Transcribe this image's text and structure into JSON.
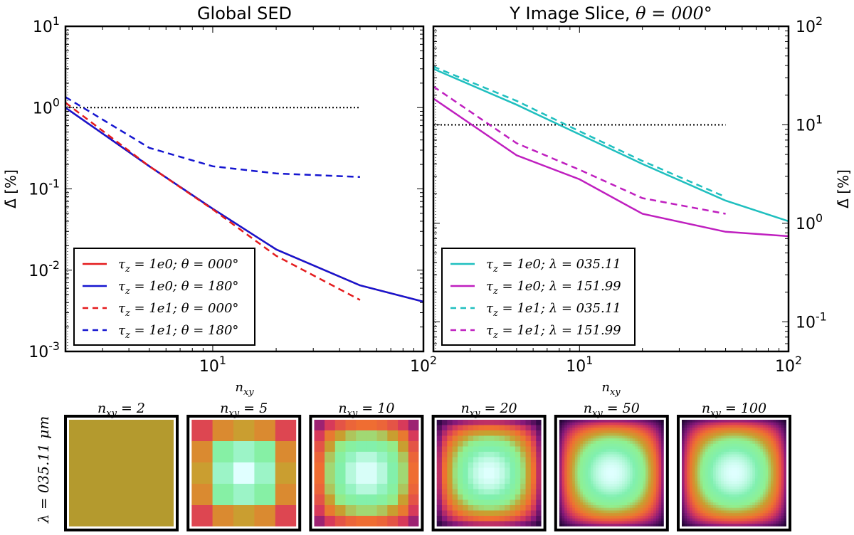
{
  "chart_data": [
    {
      "type": "line",
      "title": "Global SED",
      "xlabel": "n_xy",
      "ylabel": "Δ̄ [%]",
      "xscale": "log",
      "yscale": "log",
      "xlim": [
        2,
        100
      ],
      "ylim": [
        0.001,
        10
      ],
      "yaxis_side": "left",
      "legend_position": "lower-left",
      "xticks": [
        {
          "v": 10,
          "base": "10",
          "exp": "1"
        },
        {
          "v": 100,
          "base": "10",
          "exp": "2"
        }
      ],
      "yticks": [
        {
          "v": 0.001,
          "base": "10",
          "exp": "-3"
        },
        {
          "v": 0.01,
          "base": "10",
          "exp": "-2"
        },
        {
          "v": 0.1,
          "base": "10",
          "exp": "-1"
        },
        {
          "v": 1,
          "base": "10",
          "exp": "0"
        },
        {
          "v": 10,
          "base": "10",
          "exp": "1"
        }
      ],
      "reference_line": {
        "y": 1.0,
        "x": [
          2,
          50
        ],
        "color": "#000000",
        "style": "dotted"
      },
      "series": [
        {
          "name": "τz = 1e0; θ = 000°",
          "color": "#e41a1c",
          "style": "solid",
          "x": [
            2,
            5,
            10,
            20,
            50,
            100
          ],
          "y": [
            1.0,
            0.19,
            0.057,
            0.018,
            0.0065,
            0.0041
          ]
        },
        {
          "name": "τz = 1e0; θ = 180°",
          "color": "#1515d0",
          "style": "solid",
          "x": [
            2,
            5,
            10,
            20,
            50,
            100
          ],
          "y": [
            1.0,
            0.19,
            0.057,
            0.018,
            0.0065,
            0.0041
          ]
        },
        {
          "name": "τz = 1e1; θ = 000°",
          "color": "#e41a1c",
          "style": "dashed",
          "x": [
            2,
            5,
            10,
            20,
            50
          ],
          "y": [
            1.15,
            0.19,
            0.056,
            0.015,
            0.0043
          ]
        },
        {
          "name": "τz = 1e1; θ = 180°",
          "color": "#1515d0",
          "style": "dashed",
          "x": [
            2,
            5,
            10,
            20,
            50
          ],
          "y": [
            1.35,
            0.32,
            0.19,
            0.155,
            0.14
          ]
        }
      ],
      "legend_labels": [
        {
          "tau": "1e0",
          "var": "θ",
          "val": "000°"
        },
        {
          "tau": "1e0",
          "var": "θ",
          "val": "180°"
        },
        {
          "tau": "1e1",
          "var": "θ",
          "val": "000°"
        },
        {
          "tau": "1e1",
          "var": "θ",
          "val": "180°"
        }
      ]
    },
    {
      "type": "line",
      "title": "Y Image Slice, θ = 000°",
      "xlabel": "n_xy",
      "ylabel": "Δ̄ [%]",
      "xscale": "log",
      "yscale": "log",
      "xlim": [
        2,
        100
      ],
      "ylim": [
        0.05,
        100
      ],
      "yaxis_side": "right",
      "legend_position": "lower-left",
      "xticks": [
        {
          "v": 10,
          "base": "10",
          "exp": "1"
        },
        {
          "v": 100,
          "base": "10",
          "exp": "2"
        }
      ],
      "yticks": [
        {
          "v": 0.1,
          "base": "10",
          "exp": "-1"
        },
        {
          "v": 1,
          "base": "10",
          "exp": "0"
        },
        {
          "v": 10,
          "base": "10",
          "exp": "1"
        },
        {
          "v": 100,
          "base": "10",
          "exp": "2"
        }
      ],
      "reference_line": {
        "y": 10.0,
        "x": [
          2,
          50
        ],
        "color": "#000000",
        "style": "dotted"
      },
      "series": [
        {
          "name": "τz = 1e0; λ = 035.11",
          "color": "#1fbfbf",
          "style": "solid",
          "x": [
            2,
            5,
            10,
            20,
            50,
            100
          ],
          "y": [
            37,
            16,
            8.0,
            4.0,
            1.7,
            1.05
          ]
        },
        {
          "name": "τz = 1e0; λ = 151.99",
          "color": "#bf1fbf",
          "style": "solid",
          "x": [
            2,
            5,
            10,
            20,
            50,
            100
          ],
          "y": [
            18.5,
            4.9,
            2.8,
            1.25,
            0.82,
            0.74
          ]
        },
        {
          "name": "τz = 1e1; λ = 035.11",
          "color": "#1fbfbf",
          "style": "dashed",
          "x": [
            2,
            5,
            10,
            20,
            50
          ],
          "y": [
            39,
            17.5,
            8.6,
            4.3,
            1.85
          ]
        },
        {
          "name": "τz = 1e1; λ = 151.99",
          "color": "#bf1fbf",
          "style": "dashed",
          "x": [
            2,
            5,
            10,
            20,
            50
          ],
          "y": [
            24.5,
            6.5,
            3.5,
            1.8,
            1.25
          ]
        }
      ],
      "legend_labels": [
        {
          "tau": "1e0",
          "var": "λ",
          "val": "035.11"
        },
        {
          "tau": "1e0",
          "var": "λ",
          "val": "151.99"
        },
        {
          "tau": "1e1",
          "var": "λ",
          "val": "035.11"
        },
        {
          "tau": "1e1",
          "var": "λ",
          "val": "151.99"
        }
      ]
    }
  ],
  "image_strip": {
    "row_label": "λ = 035.11 μm",
    "panels": [
      {
        "title": "n_xy = 2",
        "n": 2
      },
      {
        "title": "n_xy = 5",
        "n": 5
      },
      {
        "title": "n_xy = 10",
        "n": 10
      },
      {
        "title": "n_xy = 20",
        "n": 20
      },
      {
        "title": "n_xy = 50",
        "n": 50
      },
      {
        "title": "n_xy = 100",
        "n": 100
      }
    ],
    "colormap": [
      "#000000",
      "#3a0a4f",
      "#8a1a7a",
      "#d83a5a",
      "#f07030",
      "#c8a030",
      "#90f090",
      "#80f0b0",
      "#e0ffff"
    ]
  }
}
